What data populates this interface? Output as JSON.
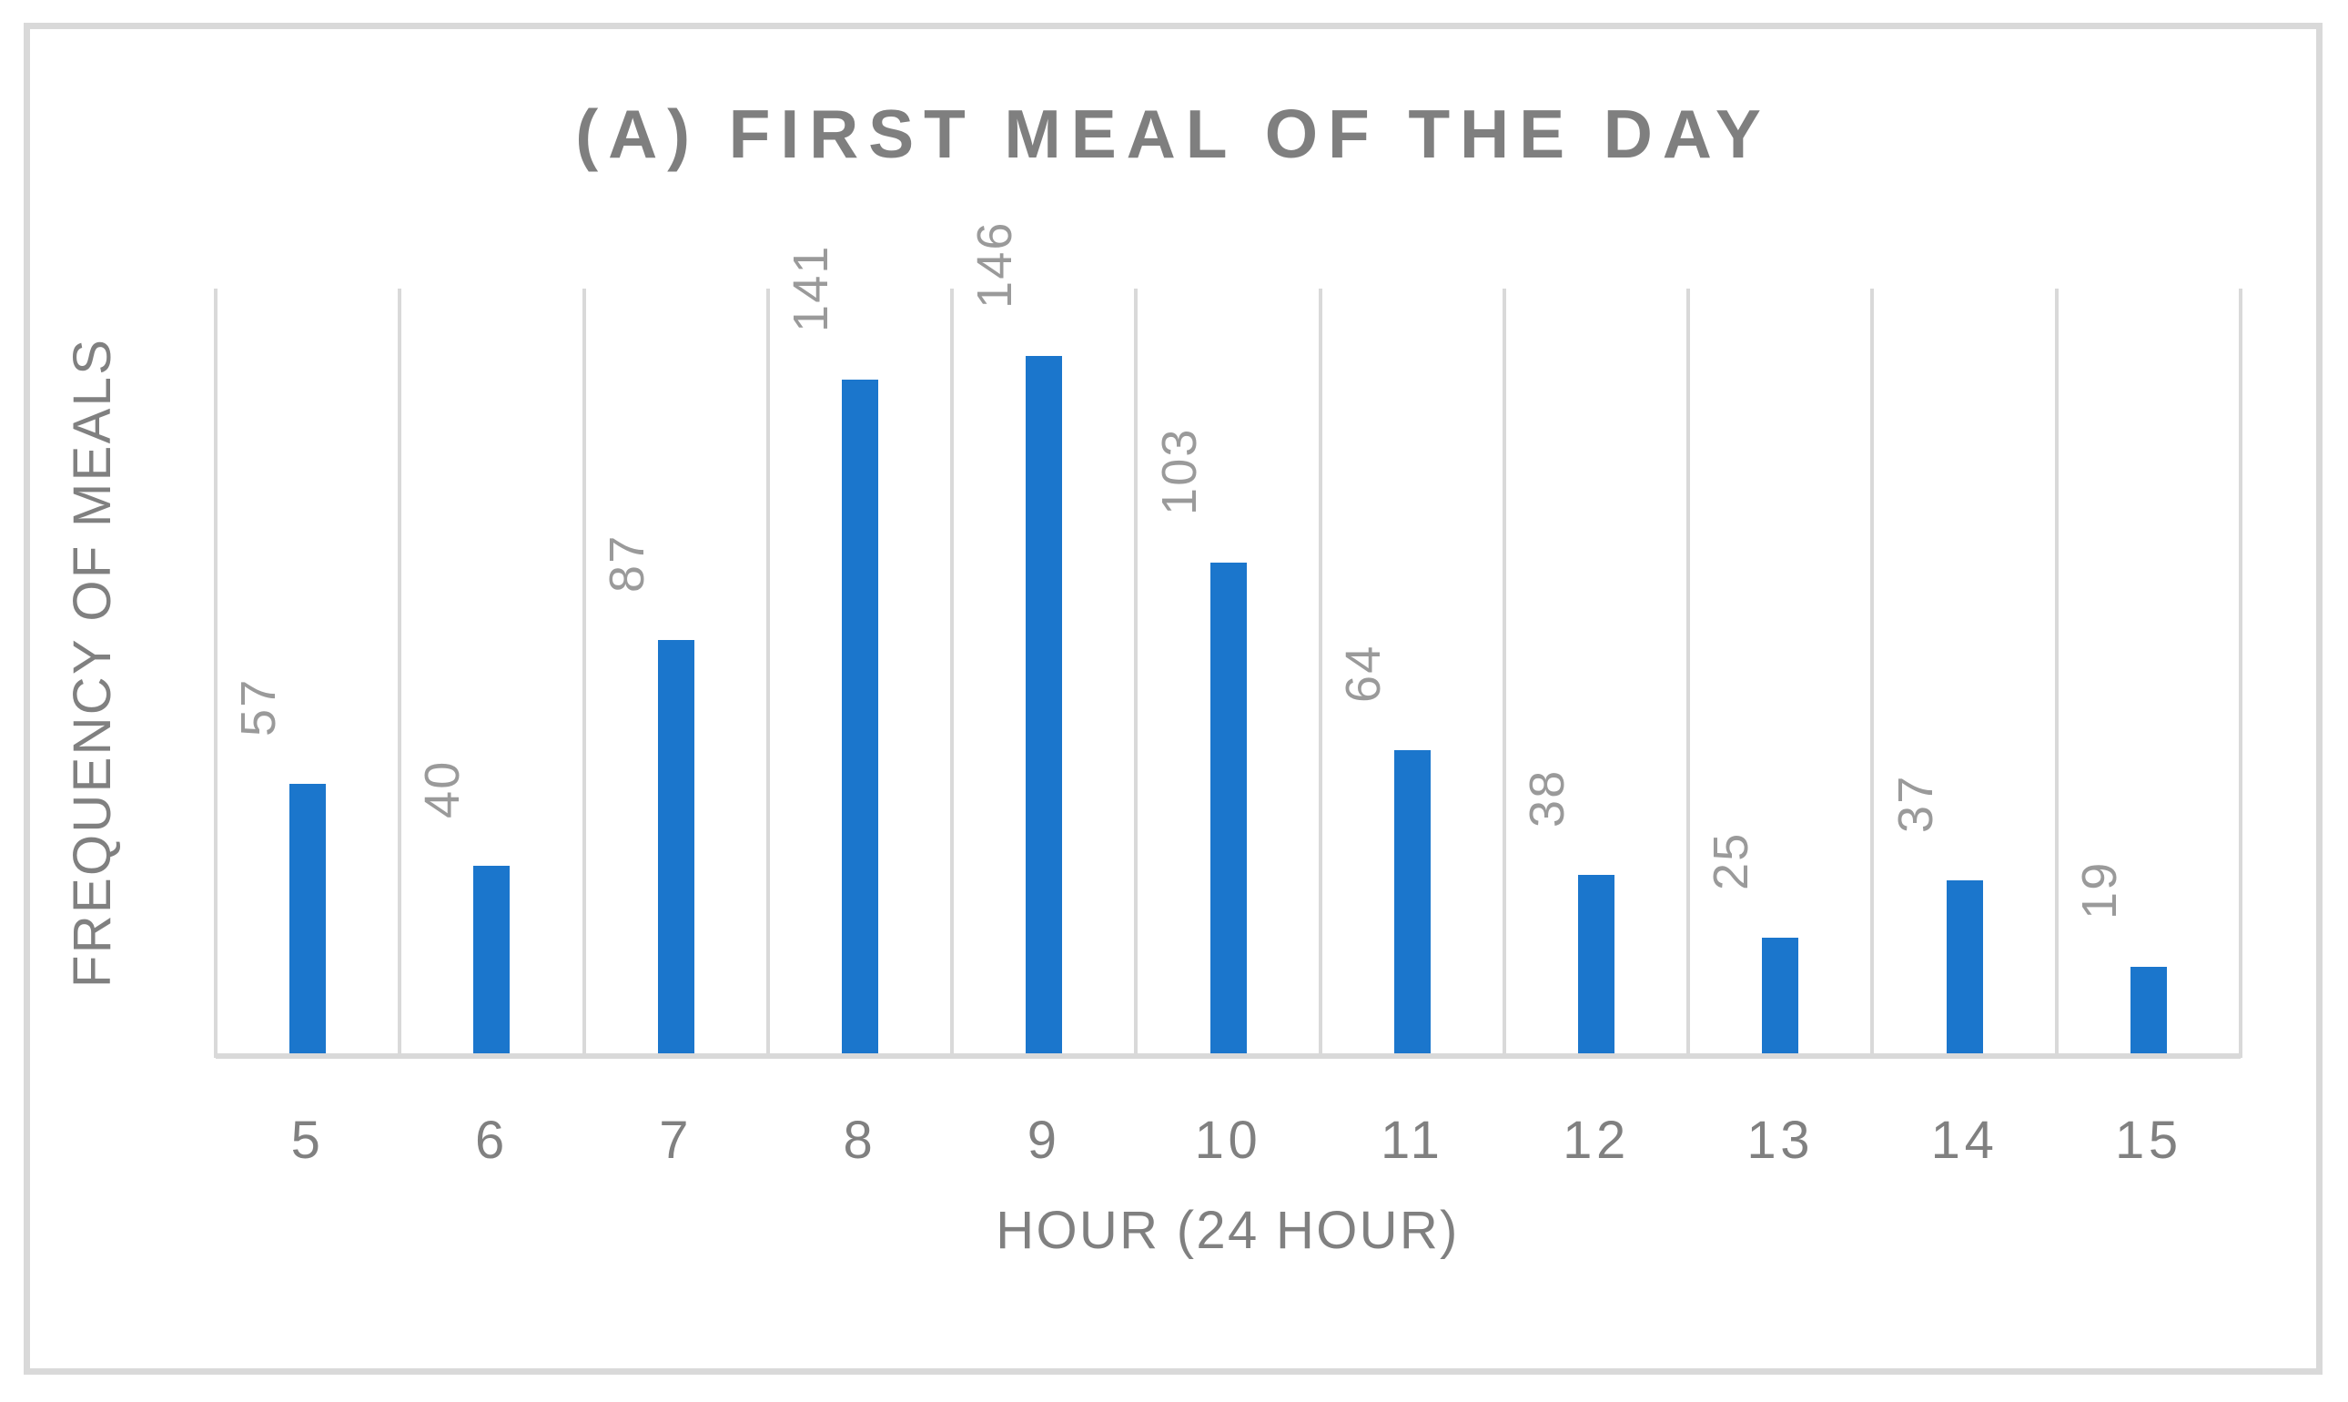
{
  "figure": {
    "background": "#FFFFFF",
    "frame_border_color": "#D9D9D9"
  },
  "chart_data": {
    "type": "bar",
    "title": "(A) FIRST MEAL OF THE DAY",
    "categories": [
      "5",
      "6",
      "7",
      "8",
      "9",
      "10",
      "11",
      "12",
      "13",
      "14",
      "15"
    ],
    "values": [
      57,
      40,
      87,
      141,
      146,
      103,
      64,
      38,
      25,
      37,
      19
    ],
    "xlabel": "HOUR (24 HOUR)",
    "ylabel": "FREQUENCY OF MEALS",
    "ylim": [
      0,
      160
    ],
    "grid": "vertical gridlines at category boundaries, no horizontal gridlines",
    "legend": false,
    "data_labels": "value above each bar, rotated 90deg counterclockwise",
    "colors": {
      "bar": "#1B76CC",
      "gridline": "#D9D9D9",
      "axis_line": "#D9D9D9",
      "title_text": "#7F7F7F",
      "axis_text": "#808080",
      "value_label_text": "#9A9A9A"
    }
  }
}
